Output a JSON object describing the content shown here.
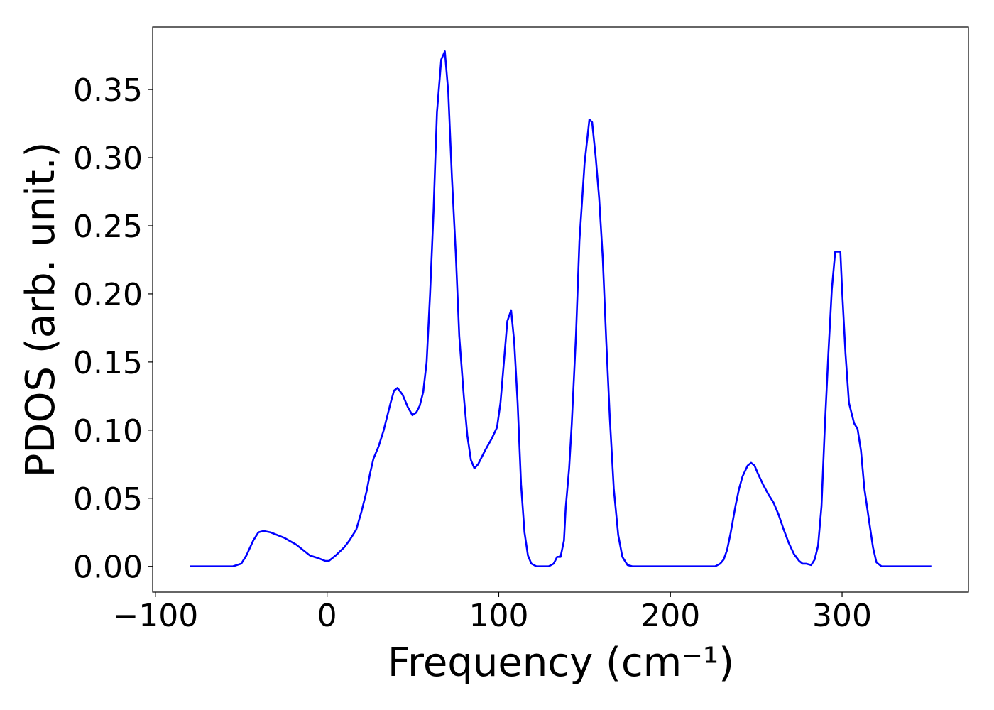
{
  "chart_data": {
    "type": "line",
    "xlabel": "Frequency (cm⁻¹)",
    "ylabel": "PDOS (arb. unit.)",
    "xlim": [
      -101.6,
      373.6
    ],
    "ylim": [
      -0.0189,
      0.3959
    ],
    "xticks": [
      {
        "value": -100,
        "label": "−100"
      },
      0,
      100,
      200,
      300
    ],
    "yticks": [
      {
        "value": 0,
        "label": "0.00"
      },
      {
        "value": 0.05,
        "label": "0.05"
      },
      {
        "value": 0.1,
        "label": "0.10"
      },
      {
        "value": 0.15,
        "label": "0.15"
      },
      {
        "value": 0.2,
        "label": "0.20"
      },
      {
        "value": 0.25,
        "label": "0.25"
      },
      {
        "value": 0.3,
        "label": "0.30"
      },
      {
        "value": 0.35,
        "label": "0.35"
      }
    ],
    "grid": false,
    "series": [
      {
        "color": "#0000ff",
        "x": [
          -80,
          -55,
          -50,
          -47,
          -43,
          -40,
          -37,
          -33,
          -25,
          -18,
          -15,
          -10,
          -5,
          -1,
          1,
          5,
          10,
          13,
          17,
          20,
          23,
          25,
          27,
          30,
          33,
          37,
          39,
          41,
          44,
          47,
          49.7,
          52,
          54,
          56,
          58,
          60,
          62,
          64,
          66.5,
          68.6,
          70.6,
          72.7,
          75,
          77,
          79.7,
          81.7,
          83.8,
          85.8,
          88,
          92,
          96,
          99,
          101,
          103,
          105,
          107.2,
          109,
          111,
          113,
          115,
          117,
          119,
          122,
          129,
          132,
          134,
          136,
          138,
          139,
          141,
          142.5,
          145,
          147,
          150,
          152.8,
          154.4,
          156.5,
          158.5,
          160.6,
          162.6,
          164.7,
          167,
          169.6,
          172,
          175,
          178,
          226,
          229,
          231,
          233,
          235,
          238,
          240,
          242,
          245,
          247,
          249,
          251,
          254,
          257,
          260,
          263,
          266,
          269,
          272,
          275,
          277,
          279,
          282,
          284,
          286,
          288,
          290,
          292,
          294,
          296,
          299,
          300,
          302,
          304,
          307,
          309,
          311,
          313,
          316,
          318,
          320,
          323,
          352
        ],
        "values": [
          0,
          0,
          0.002,
          0.008,
          0.019,
          0.025,
          0.026,
          0.025,
          0.021,
          0.016,
          0.013,
          0.008,
          0.006,
          0.004,
          0.004,
          0.008,
          0.014,
          0.019,
          0.027,
          0.04,
          0.055,
          0.068,
          0.079,
          0.088,
          0.1,
          0.12,
          0.129,
          0.131,
          0.126,
          0.117,
          0.111,
          0.113,
          0.118,
          0.128,
          0.15,
          0.2,
          0.26,
          0.333,
          0.372,
          0.378,
          0.348,
          0.286,
          0.229,
          0.169,
          0.124,
          0.096,
          0.078,
          0.072,
          0.075,
          0.085,
          0.094,
          0.102,
          0.12,
          0.15,
          0.18,
          0.188,
          0.165,
          0.12,
          0.06,
          0.025,
          0.008,
          0.002,
          0,
          0,
          0.002,
          0.007,
          0.007,
          0.019,
          0.043,
          0.072,
          0.104,
          0.17,
          0.239,
          0.296,
          0.328,
          0.326,
          0.3,
          0.27,
          0.226,
          0.166,
          0.109,
          0.057,
          0.023,
          0.007,
          0.001,
          0,
          0,
          0.002,
          0.005,
          0.012,
          0.024,
          0.045,
          0.057,
          0.066,
          0.074,
          0.076,
          0.074,
          0.068,
          0.06,
          0.053,
          0.047,
          0.038,
          0.027,
          0.017,
          0.009,
          0.004,
          0.002,
          0.002,
          0.001,
          0.005,
          0.015,
          0.044,
          0.104,
          0.156,
          0.203,
          0.231,
          0.231,
          0.203,
          0.156,
          0.12,
          0.105,
          0.101,
          0.085,
          0.057,
          0.031,
          0.014,
          0.003,
          0,
          0
        ]
      }
    ]
  }
}
